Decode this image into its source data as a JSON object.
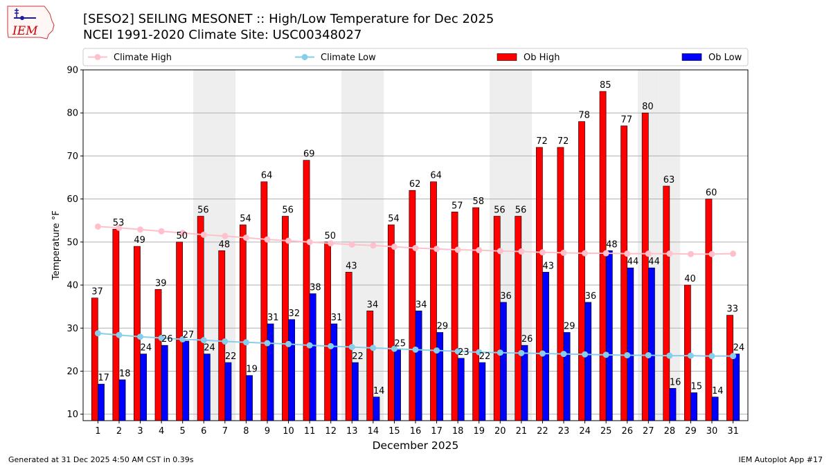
{
  "header": {
    "title_line1": "[SESO2] SEILING MESONET :: High/Low Temperature for Dec 2025",
    "title_line2": "NCEI 1991-2020 Climate Site: USC00348027"
  },
  "logo": {
    "text": "IEM",
    "color": "#cc0000"
  },
  "footer": {
    "left": "Generated at 31 Dec 2025 4:50 AM CST in 0.39s",
    "right": "IEM Autoplot App #17"
  },
  "chart_data": {
    "type": "bar",
    "xlabel": "December 2025",
    "ylabel": "Temperature °F",
    "ylim": [
      8.5,
      90
    ],
    "yticks": [
      10,
      20,
      30,
      40,
      50,
      60,
      70,
      80,
      90
    ],
    "grid": "horizontal",
    "weekend_shading_days": [
      6,
      7,
      13,
      14,
      20,
      21,
      27,
      28
    ],
    "categories": [
      "1",
      "2",
      "3",
      "4",
      "5",
      "6",
      "7",
      "8",
      "9",
      "10",
      "11",
      "12",
      "13",
      "14",
      "15",
      "16",
      "17",
      "18",
      "19",
      "20",
      "21",
      "22",
      "23",
      "24",
      "25",
      "26",
      "27",
      "28",
      "29",
      "30",
      "31"
    ],
    "series": [
      {
        "name": "Ob High",
        "kind": "bar",
        "color": "#ff0000",
        "values": [
          37,
          53,
          49,
          39,
          50,
          56,
          48,
          54,
          64,
          56,
          69,
          50,
          43,
          34,
          54,
          62,
          64,
          57,
          58,
          56,
          56,
          72,
          72,
          78,
          85,
          77,
          80,
          63,
          40,
          60,
          33
        ],
        "labels": [
          "37",
          "53",
          "49",
          "39",
          "50",
          "56",
          "48",
          "54",
          "64",
          "56",
          "69",
          "50",
          "43",
          "34",
          "54",
          "62",
          "64",
          "57",
          "58",
          "56",
          "56",
          "72",
          "72",
          "78",
          "85",
          "77",
          "80",
          "63",
          "40",
          "60",
          "33"
        ]
      },
      {
        "name": "Ob Low",
        "kind": "bar",
        "color": "#0000ff",
        "values": [
          17,
          18,
          24,
          26,
          27,
          24,
          22,
          19,
          31,
          32,
          38,
          31,
          22,
          14,
          25,
          34,
          29,
          23,
          22,
          36,
          26,
          43,
          29,
          36,
          48,
          44,
          44,
          16,
          15,
          14,
          24
        ],
        "labels": [
          "17",
          "18",
          "24",
          "26",
          "27",
          "24",
          "22",
          "19",
          "31",
          "32",
          "38",
          "31",
          "22",
          "14",
          "25",
          "34",
          "29",
          "23",
          "22",
          "36",
          "26",
          "43",
          "29",
          "36",
          "48",
          "44",
          "44",
          "16",
          "15",
          "14",
          "24"
        ]
      },
      {
        "name": "Climate High",
        "kind": "line",
        "color": "#ffc0cb",
        "values": [
          53.6,
          53.3,
          52.9,
          52.5,
          52.1,
          51.7,
          51.4,
          51.0,
          50.6,
          50.3,
          50.0,
          49.7,
          49.4,
          49.2,
          48.9,
          48.6,
          48.4,
          48.2,
          48.1,
          47.9,
          47.8,
          47.6,
          47.5,
          47.4,
          47.4,
          47.3,
          47.3,
          47.3,
          47.2,
          47.2,
          47.3
        ]
      },
      {
        "name": "Climate Low",
        "kind": "line",
        "color": "#87ceeb",
        "values": [
          28.8,
          28.4,
          28.0,
          27.7,
          27.4,
          27.2,
          26.9,
          26.7,
          26.5,
          26.3,
          26.0,
          25.8,
          25.6,
          25.4,
          25.2,
          25.0,
          24.8,
          24.6,
          24.4,
          24.3,
          24.2,
          24.1,
          24.0,
          23.9,
          23.8,
          23.7,
          23.7,
          23.6,
          23.6,
          23.5,
          23.5
        ]
      }
    ],
    "legend_order": [
      "Climate High",
      "Climate Low",
      "Ob High",
      "Ob Low"
    ],
    "legend_position": "top"
  }
}
